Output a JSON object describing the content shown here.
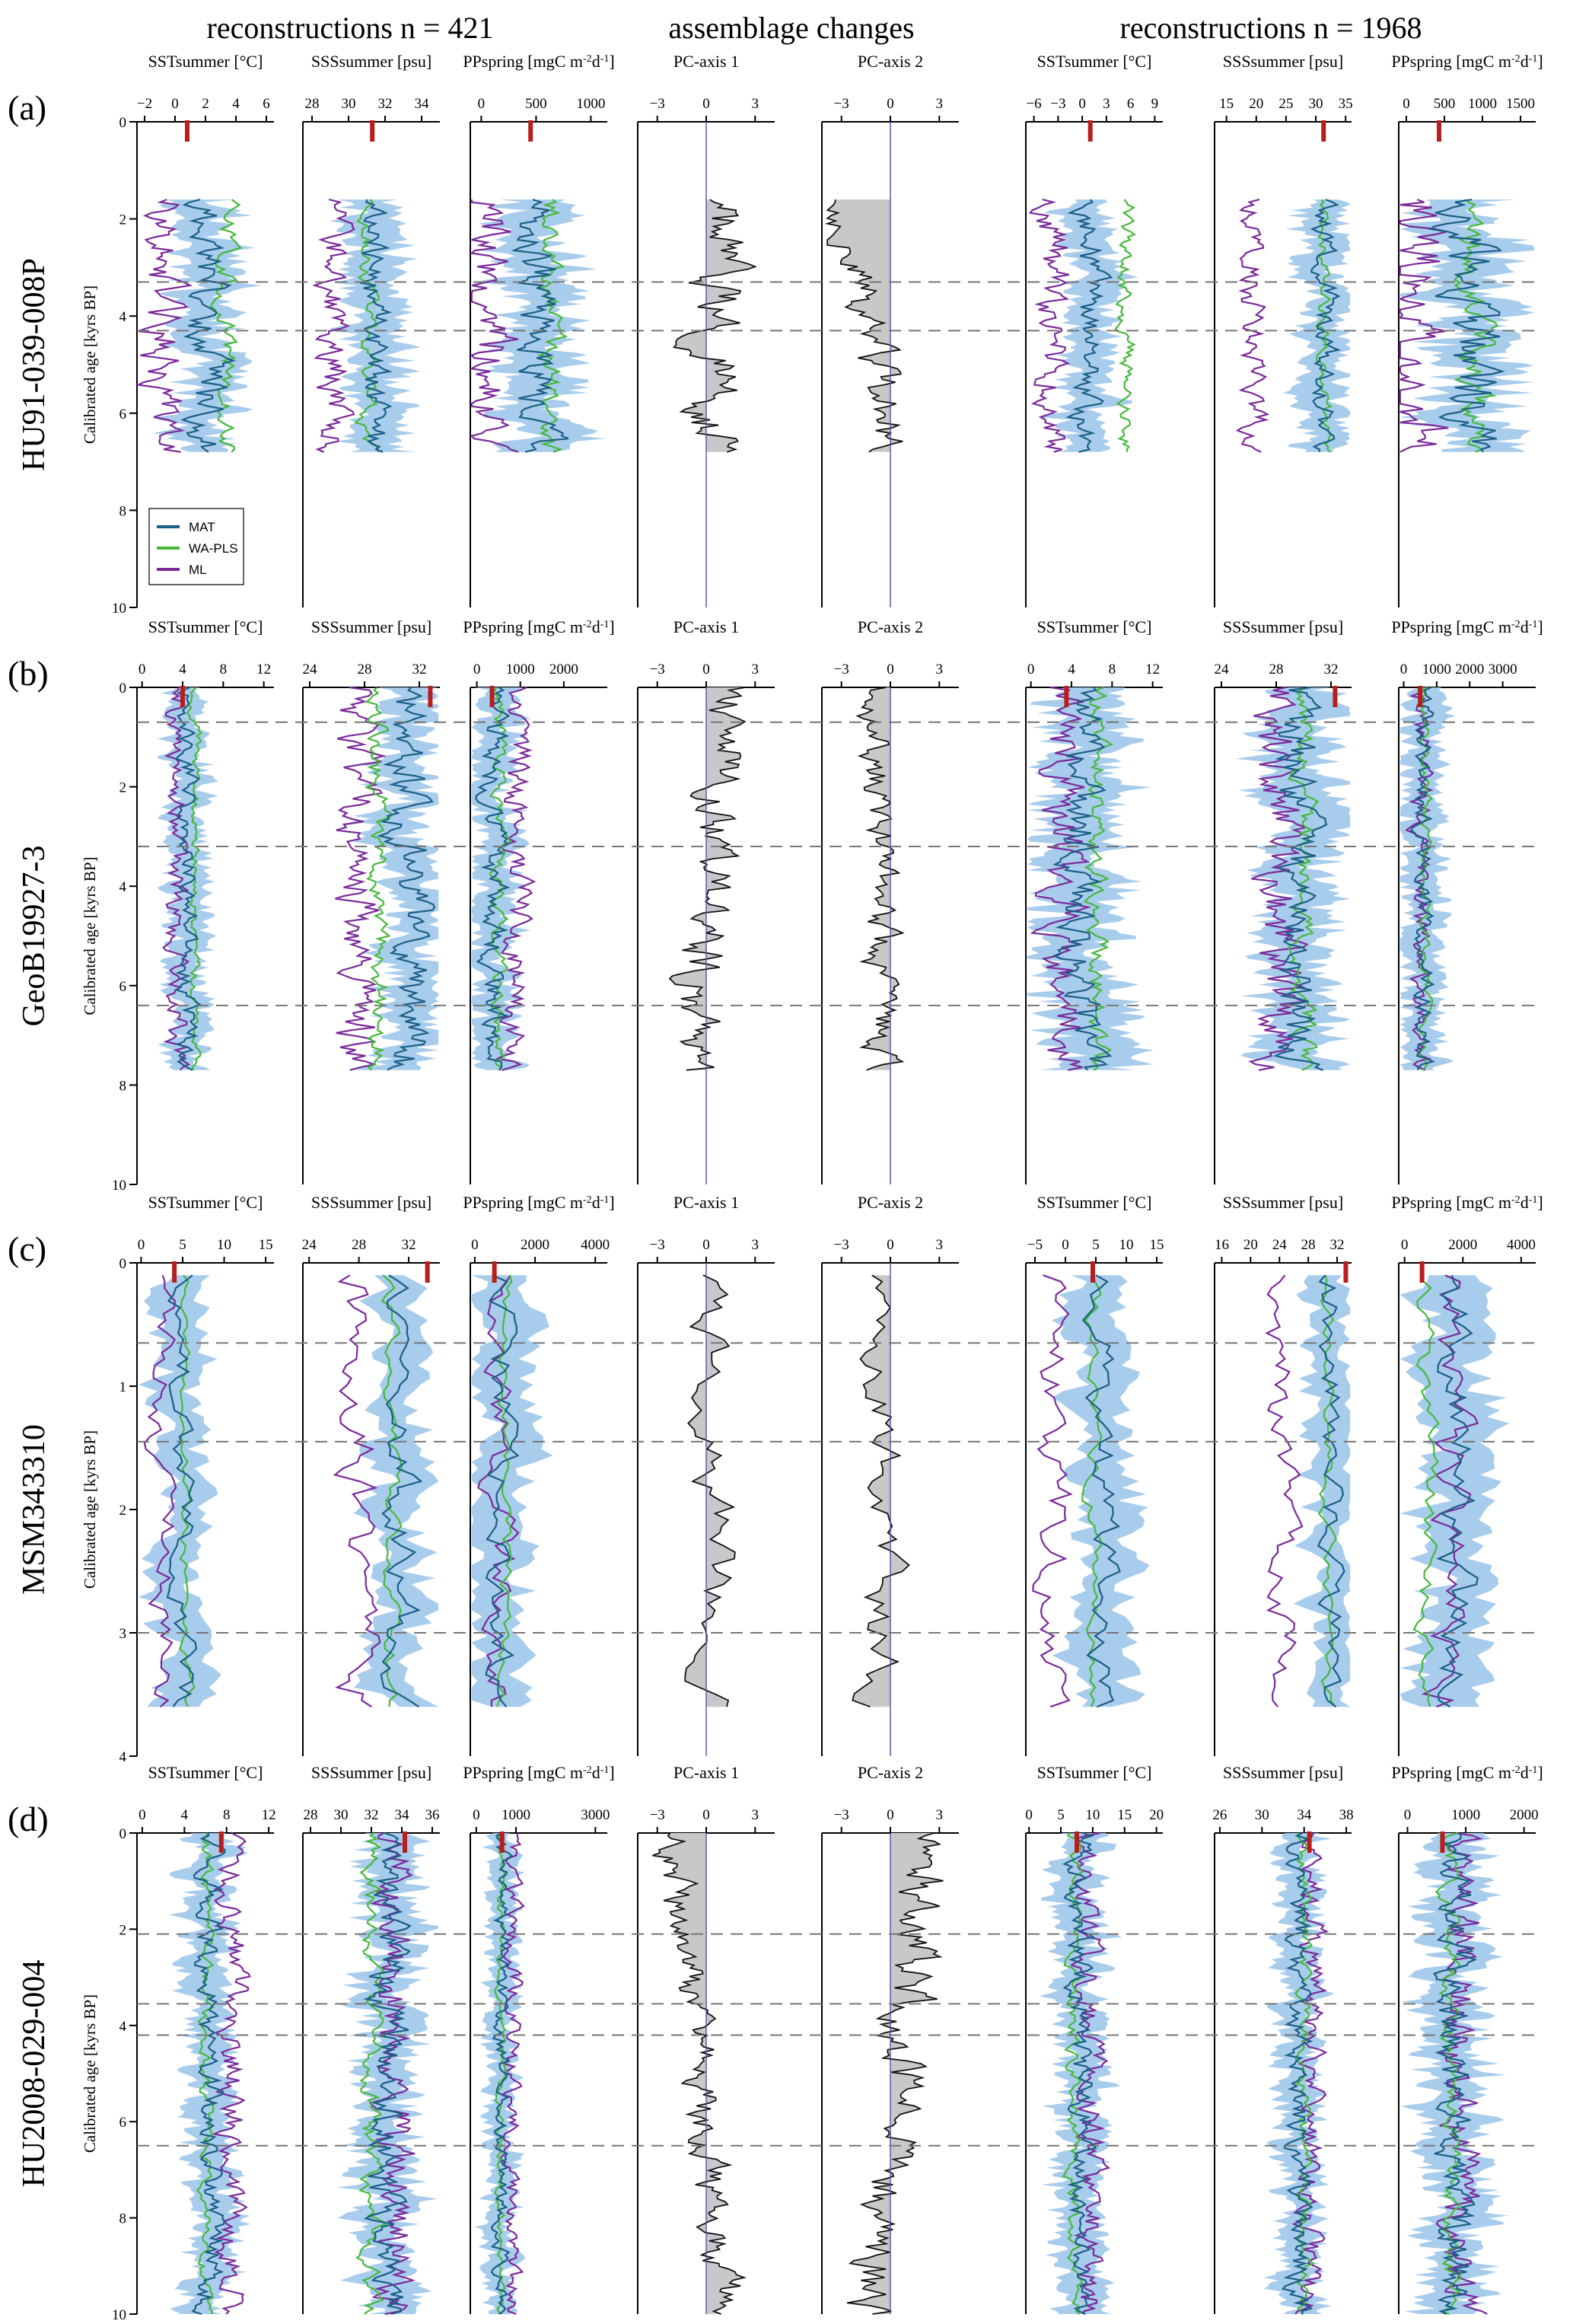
{
  "headers": {
    "left": "reconstructions n = 421",
    "middle": "assemblage changes",
    "right": "reconstructions n = 1968"
  },
  "colors": {
    "MAT": "#1b5f86",
    "WA-PLS": "#46b83c",
    "ML": "#7b2a9a",
    "band": "#9fc7ea",
    "pc_fill": "#c8c8c8",
    "modern": "#b81e1e",
    "dash": "#777777"
  },
  "legend": [
    {
      "key": "MAT",
      "label": "MAT"
    },
    {
      "key": "WA-PLS",
      "label": "WA-PLS"
    },
    {
      "key": "ML",
      "label": "ML"
    }
  ],
  "chart_data": [
    {
      "type": "line",
      "panel": "(a)",
      "core": "HU91-039-008P",
      "ylabel": "Calibrated age [kyrs BP]",
      "ylim": [
        10,
        0
      ],
      "yticks": [
        0,
        2,
        4,
        6,
        8,
        10
      ],
      "age_range": [
        1.6,
        6.8
      ],
      "boundaries": [
        3.3,
        4.3
      ],
      "columns": [
        {
          "kind": "recon",
          "title": "SSTsummer [°C]",
          "xlim": [
            -2.5,
            6.5
          ],
          "xticks": [
            -2,
            0,
            2,
            4,
            6
          ],
          "modern": 0.8,
          "mat": 2.2,
          "wapls": 3.3,
          "ml": -0.8,
          "amp": 1.3,
          "band": 1.8
        },
        {
          "kind": "recon",
          "title": "SSSsummer [psu]",
          "xlim": [
            27.5,
            35
          ],
          "xticks": [
            28,
            30,
            32,
            34
          ],
          "modern": 31.3,
          "mat": 31.3,
          "wapls": 31.0,
          "ml": 29.2,
          "amp": 0.8,
          "band": 1.5
        },
        {
          "kind": "recon",
          "title": "PPspring [mgC m-2d-1]",
          "xlim": [
            -100,
            1150
          ],
          "xticks": [
            0,
            500,
            1000
          ],
          "modern": 450,
          "mat": 520,
          "wapls": 620,
          "ml": 80,
          "amp": 200,
          "band": 300
        },
        {
          "kind": "pc",
          "title": "PC-axis 1",
          "xlim": [
            -4.2,
            4.2
          ],
          "xticks": [
            -3,
            0,
            3
          ],
          "base": 0.5,
          "amp": 1.8
        },
        {
          "kind": "pc",
          "title": "PC-axis 2",
          "xlim": [
            -4.2,
            4.2
          ],
          "xticks": [
            -3,
            0,
            3
          ],
          "base": -1.5,
          "amp": 1.4,
          "trend": 3.5
        },
        {
          "kind": "recon",
          "title": "SSTsummer [°C]",
          "xlim": [
            -7,
            10
          ],
          "xticks": [
            -6,
            -3,
            0,
            3,
            6,
            9
          ],
          "modern": 1.0,
          "mat": 1.0,
          "wapls": 5.5,
          "ml": -3.5,
          "amp": 2.0,
          "band": 3.0
        },
        {
          "kind": "recon",
          "title": "SSSsummer [psu]",
          "xlim": [
            13,
            36
          ],
          "xticks": [
            15,
            20,
            25,
            30,
            35
          ],
          "modern": 31.3,
          "mat": 31.5,
          "wapls": 31.5,
          "ml": 19.5,
          "amp": 2.0,
          "band": 4.0
        },
        {
          "kind": "recon",
          "title": "PPspring [mgC m-2d-1]",
          "xlim": [
            -100,
            1700
          ],
          "xticks": [
            0,
            500,
            1000,
            1500
          ],
          "modern": 430,
          "mat": 800,
          "wapls": 900,
          "ml": 150,
          "amp": 400,
          "band": 500
        }
      ]
    },
    {
      "type": "line",
      "panel": "(b)",
      "core": "GeoB19927-3",
      "ylabel": "Calibrated age [kyrs BP]",
      "ylim": [
        10,
        0
      ],
      "yticks": [
        0,
        2,
        4,
        6,
        8,
        10
      ],
      "age_range": [
        0.0,
        7.7
      ],
      "boundaries": [
        0.7,
        3.2,
        6.4
      ],
      "columns": [
        {
          "kind": "recon",
          "title": "SSTsummer [°C]",
          "xlim": [
            -0.5,
            13
          ],
          "xticks": [
            0,
            4,
            8,
            12
          ],
          "modern": 4.0,
          "mat": 4.5,
          "wapls": 5.2,
          "ml": 3.5,
          "amp": 1.0,
          "band": 1.8
        },
        {
          "kind": "recon",
          "title": "SSSsummer [psu]",
          "xlim": [
            23.5,
            33.5
          ],
          "xticks": [
            24,
            28,
            32
          ],
          "modern": 32.8,
          "mat": 31.0,
          "wapls": 29.0,
          "ml": 27.5,
          "amp": 1.5,
          "band": 2.0
        },
        {
          "kind": "recon",
          "title": "PPspring [mgC m-2d-1]",
          "xlim": [
            -150,
            3000
          ],
          "xticks": [
            0,
            1000,
            2000
          ],
          "modern": 350,
          "mat": 400,
          "wapls": 500,
          "ml": 900,
          "amp": 300,
          "band": 500
        },
        {
          "kind": "pc",
          "title": "PC-axis 1",
          "xlim": [
            -4.2,
            4.2
          ],
          "xticks": [
            -3,
            0,
            3
          ],
          "base": 0.3,
          "amp": 1.6,
          "trend": -3.0
        },
        {
          "kind": "pc",
          "title": "PC-axis 2",
          "xlim": [
            -4.2,
            4.2
          ],
          "xticks": [
            -3,
            0,
            3
          ],
          "base": -0.8,
          "amp": 1.2
        },
        {
          "kind": "recon",
          "title": "SSTsummer [°C]",
          "xlim": [
            -0.5,
            13
          ],
          "xticks": [
            0,
            4,
            8,
            12
          ],
          "modern": 3.5,
          "mat": 5.0,
          "wapls": 6.5,
          "ml": 3.5,
          "amp": 2.0,
          "band": 4.0
        },
        {
          "kind": "recon",
          "title": "SSSsummer [psu]",
          "xlim": [
            23.5,
            33.5
          ],
          "xticks": [
            24,
            28,
            32
          ],
          "modern": 32.3,
          "mat": 29.5,
          "wapls": 30.0,
          "ml": 28.0,
          "amp": 1.5,
          "band": 2.5
        },
        {
          "kind": "recon",
          "title": "PPspring [mgC m-2d-1]",
          "xlim": [
            -150,
            4000
          ],
          "xticks": [
            0,
            1000,
            2000,
            3000
          ],
          "modern": 500,
          "mat": 600,
          "wapls": 650,
          "ml": 500,
          "amp": 300,
          "band": 600
        }
      ]
    },
    {
      "type": "line",
      "panel": "(c)",
      "core": "MSM343310",
      "ylabel": "Calibrated age [kyrs BP]",
      "ylim": [
        4,
        0
      ],
      "yticks": [
        0,
        1,
        2,
        3,
        4
      ],
      "age_range": [
        0.1,
        3.6
      ],
      "boundaries": [
        0.65,
        1.45,
        3.0
      ],
      "columns": [
        {
          "kind": "recon",
          "title": "SSTsummer [°C]",
          "xlim": [
            -0.5,
            16
          ],
          "xticks": [
            0,
            5,
            10,
            15
          ],
          "modern": 4.0,
          "mat": 5.0,
          "wapls": 5.5,
          "ml": 2.5,
          "amp": 1.5,
          "band": 3.0
        },
        {
          "kind": "recon",
          "title": "SSSsummer [psu]",
          "xlim": [
            23.5,
            34.5
          ],
          "xticks": [
            24,
            28,
            32
          ],
          "modern": 33.5,
          "mat": 31.5,
          "wapls": 30.5,
          "ml": 28.0,
          "amp": 1.5,
          "band": 2.0
        },
        {
          "kind": "recon",
          "title": "PPspring [mgC m-2d-1]",
          "xlim": [
            -150,
            4400
          ],
          "xticks": [
            0,
            2000,
            4000
          ],
          "modern": 650,
          "mat": 900,
          "wapls": 1000,
          "ml": 800,
          "amp": 500,
          "band": 900
        },
        {
          "kind": "pc",
          "title": "PC-axis 1",
          "xlim": [
            -4.2,
            4.2
          ],
          "xticks": [
            -3,
            0,
            3
          ],
          "base": 0.5,
          "amp": 1.4
        },
        {
          "kind": "pc",
          "title": "PC-axis 2",
          "xlim": [
            -4.2,
            4.2
          ],
          "xticks": [
            -3,
            0,
            3
          ],
          "base": -0.5,
          "amp": 1.5
        },
        {
          "kind": "recon",
          "title": "SSTsummer [°C]",
          "xlim": [
            -6.5,
            16
          ],
          "xticks": [
            -5,
            0,
            5,
            10,
            15
          ],
          "modern": 4.5,
          "mat": 6.0,
          "wapls": 4.5,
          "ml": -1.5,
          "amp": 2.5,
          "band": 4.5
        },
        {
          "kind": "recon",
          "title": "SSSsummer [psu]",
          "xlim": [
            15,
            34
          ],
          "xticks": [
            16,
            20,
            24,
            28,
            32
          ],
          "modern": 33.2,
          "mat": 31.0,
          "wapls": 30.5,
          "ml": 24.0,
          "amp": 2.0,
          "band": 3.0
        },
        {
          "kind": "recon",
          "title": "PPspring [mgC m-2d-1]",
          "xlim": [
            -200,
            4500
          ],
          "xticks": [
            0,
            2000,
            4000
          ],
          "modern": 600,
          "mat": 1800,
          "wapls": 700,
          "ml": 1500,
          "amp": 700,
          "band": 1200
        }
      ]
    },
    {
      "type": "line",
      "panel": "(d)",
      "core": "HU2008-029-004",
      "ylabel": "Calibrated age [kyrs BP]",
      "ylim": [
        10,
        0
      ],
      "yticks": [
        0,
        2,
        4,
        6,
        8,
        10
      ],
      "age_range": [
        0.0,
        10.0
      ],
      "boundaries": [
        2.1,
        3.55,
        4.2,
        6.5
      ],
      "columns": [
        {
          "kind": "recon",
          "title": "SSTsummer [°C]",
          "xlim": [
            -0.5,
            12.5
          ],
          "xticks": [
            0,
            4,
            8,
            12
          ],
          "modern": 7.5,
          "mat": 6.5,
          "wapls": 6.0,
          "ml": 8.5,
          "amp": 1.2,
          "band": 2.0
        },
        {
          "kind": "recon",
          "title": "SSSsummer [psu]",
          "xlim": [
            27.5,
            36.5
          ],
          "xticks": [
            28,
            30,
            32,
            34,
            36
          ],
          "modern": 34.2,
          "mat": 33.0,
          "wapls": 32.0,
          "ml": 33.5,
          "amp": 1.2,
          "band": 1.8
        },
        {
          "kind": "recon",
          "title": "PPspring [mgC m-2d-1]",
          "xlim": [
            -150,
            3300
          ],
          "xticks": [
            0,
            1000,
            3000
          ],
          "modern": 650,
          "mat": 650,
          "wapls": 600,
          "ml": 900,
          "amp": 200,
          "band": 350
        },
        {
          "kind": "pc",
          "title": "PC-axis 1",
          "xlim": [
            -4.2,
            4.2
          ],
          "xticks": [
            -3,
            0,
            3
          ],
          "base": -0.5,
          "amp": 1.2,
          "trend": 3.5
        },
        {
          "kind": "pc",
          "title": "PC-axis 2",
          "xlim": [
            -4.2,
            4.2
          ],
          "xticks": [
            -3,
            0,
            3
          ],
          "base": 0.5,
          "amp": 1.6,
          "trend": -4.0
        },
        {
          "kind": "recon",
          "title": "SSTsummer [°C]",
          "xlim": [
            -0.5,
            21
          ],
          "xticks": [
            0,
            5,
            10,
            15,
            20
          ],
          "modern": 7.5,
          "mat": 8.0,
          "wapls": 7.0,
          "ml": 9.5,
          "amp": 2.0,
          "band": 3.5
        },
        {
          "kind": "recon",
          "title": "SSSsummer [psu]",
          "xlim": [
            25.5,
            38.5
          ],
          "xticks": [
            26,
            30,
            34,
            38
          ],
          "modern": 34.5,
          "mat": 33.5,
          "wapls": 34.0,
          "ml": 34.5,
          "amp": 1.2,
          "band": 1.8
        },
        {
          "kind": "recon",
          "title": "PPspring [mgC m-2d-1]",
          "xlim": [
            -150,
            2200
          ],
          "xticks": [
            0,
            1000,
            2000
          ],
          "modern": 600,
          "mat": 800,
          "wapls": 750,
          "ml": 900,
          "amp": 300,
          "band": 500
        }
      ]
    }
  ]
}
